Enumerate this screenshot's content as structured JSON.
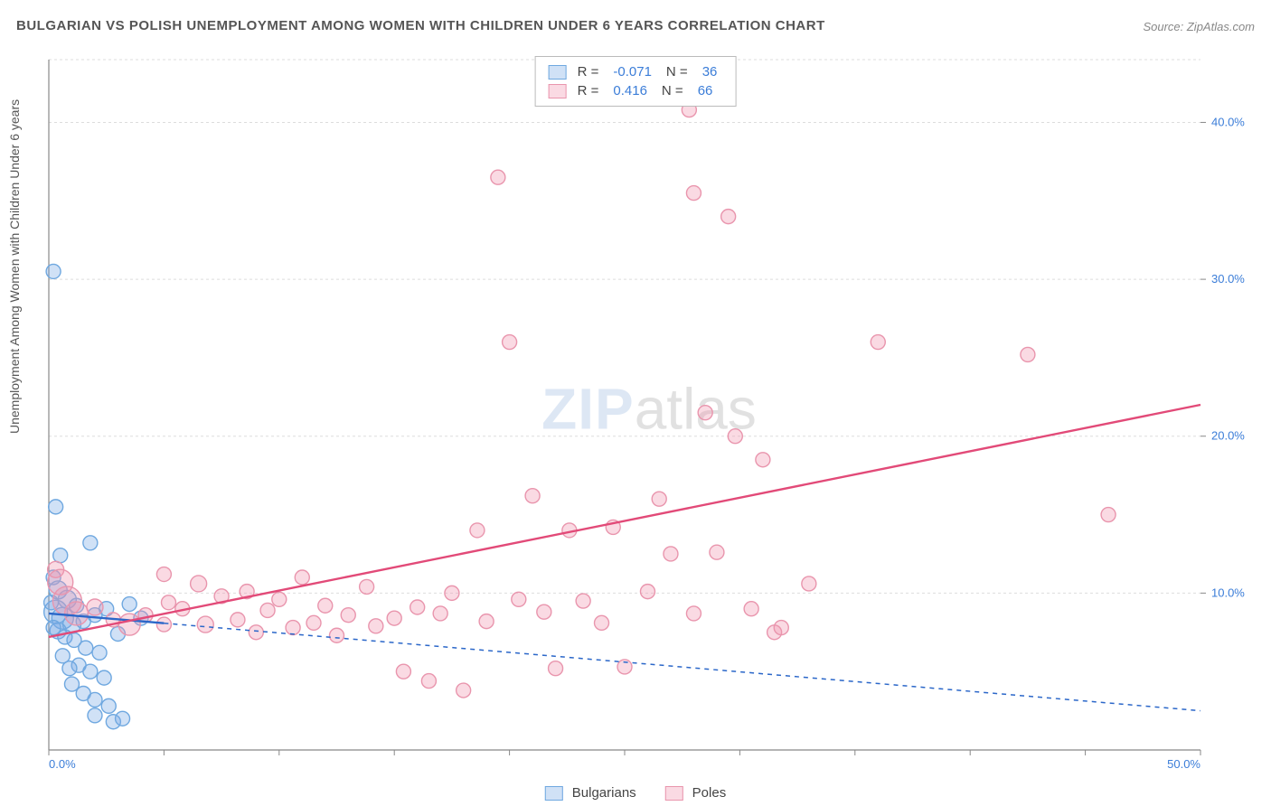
{
  "title": "BULGARIAN VS POLISH UNEMPLOYMENT AMONG WOMEN WITH CHILDREN UNDER 6 YEARS CORRELATION CHART",
  "source": "Source: ZipAtlas.com",
  "y_axis_label": "Unemployment Among Women with Children Under 6 years",
  "watermark_zip": "ZIP",
  "watermark_atlas": "atlas",
  "chart": {
    "type": "scatter",
    "xlim": [
      0,
      50
    ],
    "ylim": [
      0,
      44
    ],
    "background_color": "#ffffff",
    "grid_color": "#dddddd",
    "axis_color": "#888888",
    "tick_color": "#888888",
    "x_ticks": [
      0,
      5,
      10,
      15,
      20,
      25,
      30,
      35,
      40,
      45,
      50
    ],
    "x_tick_labels": {
      "0": "0.0%",
      "50": "50.0%"
    },
    "y_ticks": [
      10,
      20,
      30,
      40
    ],
    "y_tick_labels": {
      "10": "10.0%",
      "20": "20.0%",
      "30": "30.0%",
      "40": "40.0%"
    },
    "y_grid_at": [
      10,
      20,
      30,
      40,
      44
    ],
    "marker_radius_base": 8,
    "marker_stroke_width": 1.4,
    "line_width": 2.4,
    "series": [
      {
        "name": "Bulgarians",
        "fill_color": "rgba(120,170,230,0.35)",
        "stroke_color": "#6fa8e0",
        "line_color": "#2b67c9",
        "line_dash_extension": "5,5",
        "stats_R": "-0.071",
        "stats_N": "36",
        "trend": {
          "x1": 0,
          "y1": 8.7,
          "x2": 50,
          "y2": 2.5,
          "solid_until_x": 5
        },
        "points": [
          {
            "x": 0.2,
            "y": 30.5,
            "r": 8
          },
          {
            "x": 0.3,
            "y": 15.5,
            "r": 8
          },
          {
            "x": 0.5,
            "y": 12.4,
            "r": 8
          },
          {
            "x": 1.8,
            "y": 13.2,
            "r": 8
          },
          {
            "x": 0.2,
            "y": 11.0,
            "r": 8
          },
          {
            "x": 0.4,
            "y": 10.2,
            "r": 10
          },
          {
            "x": 0.8,
            "y": 9.6,
            "r": 10
          },
          {
            "x": 1.2,
            "y": 9.2,
            "r": 8
          },
          {
            "x": 0.3,
            "y": 8.8,
            "r": 13
          },
          {
            "x": 0.6,
            "y": 8.4,
            "r": 12
          },
          {
            "x": 1.0,
            "y": 8.0,
            "r": 10
          },
          {
            "x": 1.5,
            "y": 8.2,
            "r": 8
          },
          {
            "x": 2.0,
            "y": 8.6,
            "r": 8
          },
          {
            "x": 2.5,
            "y": 9.0,
            "r": 8
          },
          {
            "x": 0.4,
            "y": 7.6,
            "r": 9
          },
          {
            "x": 0.7,
            "y": 7.2,
            "r": 8
          },
          {
            "x": 1.1,
            "y": 7.0,
            "r": 8
          },
          {
            "x": 1.6,
            "y": 6.5,
            "r": 8
          },
          {
            "x": 2.2,
            "y": 6.2,
            "r": 8
          },
          {
            "x": 3.0,
            "y": 7.4,
            "r": 8
          },
          {
            "x": 3.5,
            "y": 9.3,
            "r": 8
          },
          {
            "x": 4.0,
            "y": 8.4,
            "r": 8
          },
          {
            "x": 1.3,
            "y": 5.4,
            "r": 8
          },
          {
            "x": 1.8,
            "y": 5.0,
            "r": 8
          },
          {
            "x": 2.4,
            "y": 4.6,
            "r": 8
          },
          {
            "x": 1.0,
            "y": 4.2,
            "r": 8
          },
          {
            "x": 1.5,
            "y": 3.6,
            "r": 8
          },
          {
            "x": 2.0,
            "y": 3.2,
            "r": 8
          },
          {
            "x": 2.6,
            "y": 2.8,
            "r": 8
          },
          {
            "x": 2.0,
            "y": 2.2,
            "r": 8
          },
          {
            "x": 2.8,
            "y": 1.8,
            "r": 8
          },
          {
            "x": 3.2,
            "y": 2.0,
            "r": 8
          },
          {
            "x": 0.6,
            "y": 6.0,
            "r": 8
          },
          {
            "x": 0.9,
            "y": 5.2,
            "r": 8
          },
          {
            "x": 0.1,
            "y": 9.4,
            "r": 8
          },
          {
            "x": 0.2,
            "y": 7.8,
            "r": 8
          }
        ]
      },
      {
        "name": "Poles",
        "fill_color": "rgba(240,150,175,0.35)",
        "stroke_color": "#e995ad",
        "line_color": "#e24a78",
        "stats_R": "0.416",
        "stats_N": "66",
        "trend": {
          "x1": 0,
          "y1": 7.2,
          "x2": 50,
          "y2": 22.0
        },
        "points": [
          {
            "x": 0.3,
            "y": 11.5,
            "r": 9
          },
          {
            "x": 0.5,
            "y": 10.7,
            "r": 14
          },
          {
            "x": 0.8,
            "y": 9.5,
            "r": 16
          },
          {
            "x": 1.2,
            "y": 8.7,
            "r": 13
          },
          {
            "x": 2.0,
            "y": 9.1,
            "r": 9
          },
          {
            "x": 2.8,
            "y": 8.3,
            "r": 8
          },
          {
            "x": 3.5,
            "y": 8.0,
            "r": 12
          },
          {
            "x": 4.2,
            "y": 8.6,
            "r": 8
          },
          {
            "x": 5.0,
            "y": 11.2,
            "r": 8
          },
          {
            "x": 5.2,
            "y": 9.4,
            "r": 8
          },
          {
            "x": 5.8,
            "y": 9.0,
            "r": 8
          },
          {
            "x": 6.5,
            "y": 10.6,
            "r": 9
          },
          {
            "x": 6.8,
            "y": 8.0,
            "r": 9
          },
          {
            "x": 7.5,
            "y": 9.8,
            "r": 8
          },
          {
            "x": 8.2,
            "y": 8.3,
            "r": 8
          },
          {
            "x": 8.6,
            "y": 10.1,
            "r": 8
          },
          {
            "x": 9.0,
            "y": 7.5,
            "r": 8
          },
          {
            "x": 9.5,
            "y": 8.9,
            "r": 8
          },
          {
            "x": 10.0,
            "y": 9.6,
            "r": 8
          },
          {
            "x": 10.6,
            "y": 7.8,
            "r": 8
          },
          {
            "x": 11.0,
            "y": 11.0,
            "r": 8
          },
          {
            "x": 11.5,
            "y": 8.1,
            "r": 8
          },
          {
            "x": 12.0,
            "y": 9.2,
            "r": 8
          },
          {
            "x": 12.5,
            "y": 7.3,
            "r": 8
          },
          {
            "x": 13.0,
            "y": 8.6,
            "r": 8
          },
          {
            "x": 13.8,
            "y": 10.4,
            "r": 8
          },
          {
            "x": 14.2,
            "y": 7.9,
            "r": 8
          },
          {
            "x": 15.0,
            "y": 8.4,
            "r": 8
          },
          {
            "x": 15.4,
            "y": 5.0,
            "r": 8
          },
          {
            "x": 16.0,
            "y": 9.1,
            "r": 8
          },
          {
            "x": 16.5,
            "y": 4.4,
            "r": 8
          },
          {
            "x": 17.0,
            "y": 8.7,
            "r": 8
          },
          {
            "x": 17.5,
            "y": 10.0,
            "r": 8
          },
          {
            "x": 18.0,
            "y": 3.8,
            "r": 8
          },
          {
            "x": 18.6,
            "y": 14.0,
            "r": 8
          },
          {
            "x": 19.0,
            "y": 8.2,
            "r": 8
          },
          {
            "x": 19.5,
            "y": 36.5,
            "r": 8
          },
          {
            "x": 20.0,
            "y": 26.0,
            "r": 8
          },
          {
            "x": 20.4,
            "y": 9.6,
            "r": 8
          },
          {
            "x": 21.0,
            "y": 16.2,
            "r": 8
          },
          {
            "x": 21.5,
            "y": 8.8,
            "r": 8
          },
          {
            "x": 22.0,
            "y": 5.2,
            "r": 8
          },
          {
            "x": 22.6,
            "y": 14.0,
            "r": 8
          },
          {
            "x": 23.2,
            "y": 9.5,
            "r": 8
          },
          {
            "x": 24.0,
            "y": 8.1,
            "r": 8
          },
          {
            "x": 24.5,
            "y": 14.2,
            "r": 8
          },
          {
            "x": 25.0,
            "y": 5.3,
            "r": 8
          },
          {
            "x": 26.0,
            "y": 10.1,
            "r": 8
          },
          {
            "x": 26.5,
            "y": 16.0,
            "r": 8
          },
          {
            "x": 27.0,
            "y": 12.5,
            "r": 8
          },
          {
            "x": 27.8,
            "y": 40.8,
            "r": 8
          },
          {
            "x": 28.0,
            "y": 8.7,
            "r": 8
          },
          {
            "x": 28.0,
            "y": 35.5,
            "r": 8
          },
          {
            "x": 28.5,
            "y": 21.5,
            "r": 8
          },
          {
            "x": 29.0,
            "y": 12.6,
            "r": 8
          },
          {
            "x": 29.5,
            "y": 34.0,
            "r": 8
          },
          {
            "x": 29.8,
            "y": 20.0,
            "r": 8
          },
          {
            "x": 30.5,
            "y": 9.0,
            "r": 8
          },
          {
            "x": 31.0,
            "y": 18.5,
            "r": 8
          },
          {
            "x": 31.5,
            "y": 7.5,
            "r": 8
          },
          {
            "x": 31.8,
            "y": 7.8,
            "r": 8
          },
          {
            "x": 33.0,
            "y": 10.6,
            "r": 8
          },
          {
            "x": 36.0,
            "y": 26.0,
            "r": 8
          },
          {
            "x": 42.5,
            "y": 25.2,
            "r": 8
          },
          {
            "x": 46.0,
            "y": 15.0,
            "r": 8
          },
          {
            "x": 5.0,
            "y": 8.0,
            "r": 8
          }
        ]
      }
    ]
  },
  "stats_labels": {
    "R": "R =",
    "N": "N ="
  },
  "legend": {
    "items": [
      {
        "label": "Bulgarians",
        "fill": "rgba(120,170,230,0.35)",
        "stroke": "#6fa8e0"
      },
      {
        "label": "Poles",
        "fill": "rgba(240,150,175,0.35)",
        "stroke": "#e995ad"
      }
    ]
  },
  "tick_label_color": "#3b7dd8"
}
